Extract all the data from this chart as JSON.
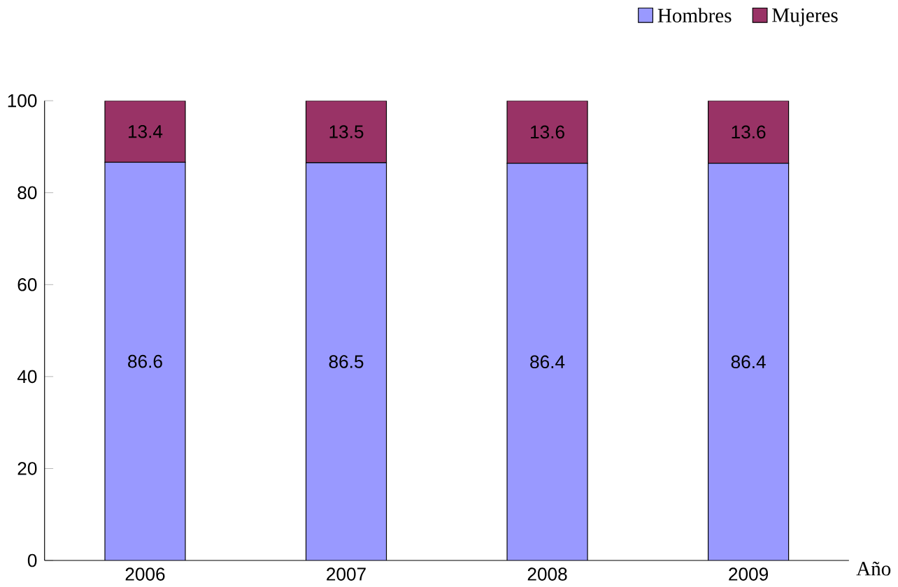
{
  "chart_data": {
    "type": "bar",
    "stacked": true,
    "xlabel": "Año",
    "categories": [
      "2006",
      "2007",
      "2008",
      "2009"
    ],
    "series": [
      {
        "name": "Hombres",
        "color": "#9999ff",
        "values": [
          86.6,
          86.5,
          86.4,
          86.4
        ]
      },
      {
        "name": "Mujeres",
        "color": "#993366",
        "values": [
          13.4,
          13.5,
          13.6,
          13.6
        ]
      }
    ],
    "ylim": [
      0,
      100
    ],
    "yticks": [
      0,
      20,
      40,
      60,
      80,
      100
    ],
    "data_labels": true,
    "legend": "top right",
    "grid": false
  }
}
